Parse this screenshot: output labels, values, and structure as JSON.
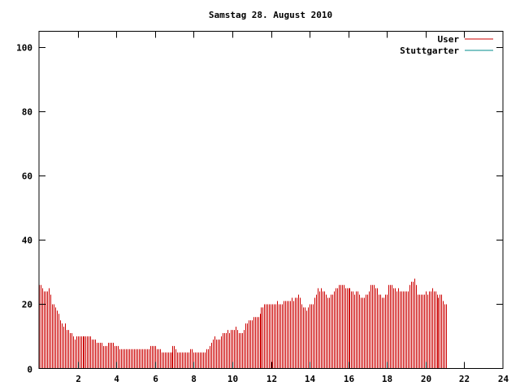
{
  "chart_data": {
    "type": "bar",
    "title": "Samstag 28. August 2010",
    "xlabel": "",
    "ylabel": "",
    "xlim": [
      0,
      24
    ],
    "ylim": [
      0,
      105
    ],
    "x_ticks": [
      "2",
      "4",
      "6",
      "8",
      "10",
      "12",
      "14",
      "16",
      "18",
      "20",
      "22",
      "24"
    ],
    "y_ticks": [
      "0",
      "20",
      "40",
      "60",
      "80",
      "100"
    ],
    "grid": false,
    "legend_position": "top-right",
    "series": [
      {
        "name": "User",
        "color": "#cc0000",
        "x_start": 0,
        "x_step": 0.0833,
        "values": [
          26,
          26,
          25,
          24,
          24,
          24,
          25,
          23,
          20,
          20,
          19,
          18,
          17,
          15,
          14,
          13,
          14,
          12,
          12,
          11,
          11,
          10,
          9,
          10,
          10,
          10,
          10,
          10,
          10,
          10,
          10,
          10,
          10,
          9,
          9,
          9,
          8,
          8,
          8,
          8,
          7,
          7,
          7,
          8,
          8,
          8,
          8,
          7,
          7,
          7,
          6,
          6,
          6,
          6,
          6,
          6,
          6,
          6,
          6,
          6,
          6,
          6,
          6,
          6,
          6,
          6,
          6,
          6,
          6,
          7,
          7,
          7,
          7,
          6,
          6,
          6,
          5,
          5,
          5,
          5,
          5,
          5,
          5,
          7,
          7,
          6,
          5,
          5,
          5,
          5,
          5,
          5,
          5,
          5,
          6,
          6,
          5,
          5,
          5,
          5,
          5,
          5,
          5,
          5,
          6,
          6,
          7,
          8,
          9,
          10,
          9,
          9,
          9,
          10,
          11,
          11,
          11,
          12,
          11,
          12,
          12,
          12,
          13,
          12,
          11,
          11,
          11,
          12,
          14,
          14,
          15,
          15,
          15,
          16,
          16,
          16,
          16,
          17,
          19,
          19,
          20,
          20,
          20,
          20,
          20,
          20,
          20,
          20,
          21,
          20,
          20,
          20,
          21,
          21,
          21,
          21,
          21,
          22,
          21,
          22,
          22,
          23,
          22,
          20,
          19,
          19,
          18,
          19,
          20,
          20,
          20,
          22,
          23,
          25,
          24,
          25,
          24,
          24,
          23,
          22,
          22,
          23,
          23,
          24,
          25,
          25,
          26,
          26,
          26,
          26,
          25,
          25,
          25,
          25,
          24,
          24,
          23,
          24,
          24,
          23,
          22,
          22,
          22,
          23,
          23,
          24,
          26,
          26,
          26,
          25,
          25,
          23,
          23,
          22,
          22,
          23,
          23,
          26,
          26,
          26,
          25,
          25,
          24,
          25,
          24,
          24,
          24,
          24,
          24,
          24,
          26,
          27,
          27,
          28,
          26,
          23,
          23,
          23,
          23,
          23,
          24,
          23,
          24,
          24,
          25,
          24,
          24,
          23,
          22,
          23,
          23,
          21,
          20,
          20
        ]
      },
      {
        "name": "Stuttgarter",
        "color": "#008b8b",
        "values": []
      }
    ]
  }
}
